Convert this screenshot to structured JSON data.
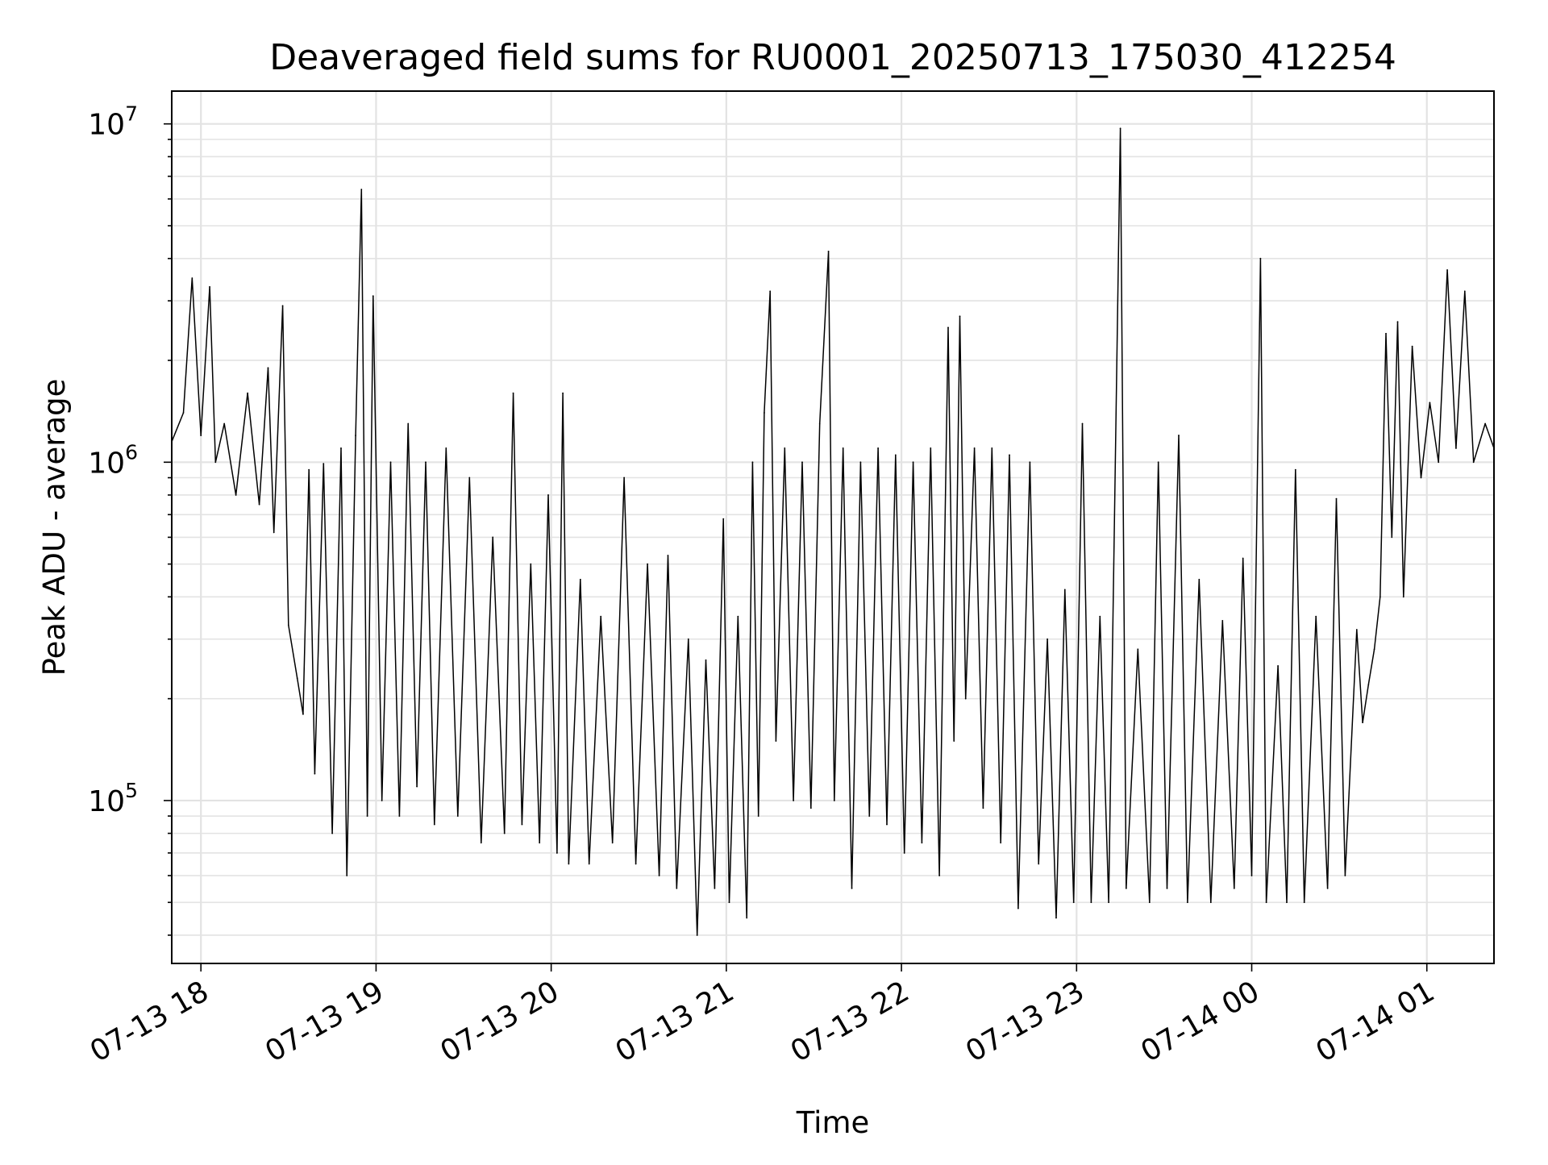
{
  "chart_data": {
    "type": "line",
    "title": "Deaveraged field sums for RU0001_20250713_175030_412254",
    "xlabel": "Time",
    "ylabel": "Peak ADU - average",
    "y_scale": "log",
    "ylim": [
      33000,
      12500000
    ],
    "xlim": [
      "07-13 17:50",
      "07-14 01:23"
    ],
    "grid": true,
    "line_color": "#000000",
    "grid_color": "#e3e3e3",
    "x_ticks": [
      "07-13 18",
      "07-13 19",
      "07-13 20",
      "07-13 21",
      "07-13 22",
      "07-13 23",
      "07-14 00",
      "07-14 01"
    ],
    "y_ticks": [
      {
        "base": "10",
        "exp": "5",
        "value": 100000
      },
      {
        "base": "10",
        "exp": "6",
        "value": 1000000
      },
      {
        "base": "10",
        "exp": "7",
        "value": 10000000
      }
    ],
    "series": [
      {
        "points": [
          [
            "07-13 17:50",
            1150000
          ],
          [
            "07-13 17:54",
            1400000
          ],
          [
            "07-13 17:57",
            3500000
          ],
          [
            "07-13 18:00",
            1200000
          ],
          [
            "07-13 18:03",
            3300000
          ],
          [
            "07-13 18:05",
            1000000
          ],
          [
            "07-13 18:08",
            1300000
          ],
          [
            "07-13 18:12",
            800000
          ],
          [
            "07-13 18:16",
            1600000
          ],
          [
            "07-13 18:20",
            750000
          ],
          [
            "07-13 18:23",
            1900000
          ],
          [
            "07-13 18:25",
            620000
          ],
          [
            "07-13 18:28",
            2900000
          ],
          [
            "07-13 18:30",
            330000
          ],
          [
            "07-13 18:33",
            230000
          ],
          [
            "07-13 18:35",
            180000
          ],
          [
            "07-13 18:37",
            950000
          ],
          [
            "07-13 18:39",
            120000
          ],
          [
            "07-13 18:42",
            990000
          ],
          [
            "07-13 18:45",
            80000
          ],
          [
            "07-13 18:48",
            1100000
          ],
          [
            "07-13 18:50",
            60000
          ],
          [
            "07-13 18:53",
            1200000
          ],
          [
            "07-13 18:55",
            6400000
          ],
          [
            "07-13 18:57",
            90000
          ],
          [
            "07-13 18:59",
            3100000
          ],
          [
            "07-13 19:02",
            100000
          ],
          [
            "07-13 19:05",
            1000000
          ],
          [
            "07-13 19:08",
            90000
          ],
          [
            "07-13 19:11",
            1300000
          ],
          [
            "07-13 19:14",
            110000
          ],
          [
            "07-13 19:17",
            1000000
          ],
          [
            "07-13 19:20",
            85000
          ],
          [
            "07-13 19:24",
            1100000
          ],
          [
            "07-13 19:28",
            90000
          ],
          [
            "07-13 19:32",
            900000
          ],
          [
            "07-13 19:36",
            75000
          ],
          [
            "07-13 19:40",
            600000
          ],
          [
            "07-13 19:44",
            80000
          ],
          [
            "07-13 19:47",
            1600000
          ],
          [
            "07-13 19:50",
            85000
          ],
          [
            "07-13 19:53",
            500000
          ],
          [
            "07-13 19:56",
            75000
          ],
          [
            "07-13 19:59",
            800000
          ],
          [
            "07-13 20:02",
            70000
          ],
          [
            "07-13 20:04",
            1600000
          ],
          [
            "07-13 20:06",
            65000
          ],
          [
            "07-13 20:10",
            450000
          ],
          [
            "07-13 20:13",
            65000
          ],
          [
            "07-13 20:17",
            350000
          ],
          [
            "07-13 20:21",
            75000
          ],
          [
            "07-13 20:25",
            900000
          ],
          [
            "07-13 20:29",
            65000
          ],
          [
            "07-13 20:33",
            500000
          ],
          [
            "07-13 20:37",
            60000
          ],
          [
            "07-13 20:40",
            530000
          ],
          [
            "07-13 20:43",
            55000
          ],
          [
            "07-13 20:47",
            300000
          ],
          [
            "07-13 20:50",
            40000
          ],
          [
            "07-13 20:53",
            260000
          ],
          [
            "07-13 20:56",
            55000
          ],
          [
            "07-13 20:59",
            680000
          ],
          [
            "07-13 21:01",
            50000
          ],
          [
            "07-13 21:04",
            350000
          ],
          [
            "07-13 21:07",
            45000
          ],
          [
            "07-13 21:09",
            1000000
          ],
          [
            "07-13 21:11",
            90000
          ],
          [
            "07-13 21:13",
            1400000
          ],
          [
            "07-13 21:15",
            3200000
          ],
          [
            "07-13 21:17",
            150000
          ],
          [
            "07-13 21:20",
            1100000
          ],
          [
            "07-13 21:23",
            100000
          ],
          [
            "07-13 21:26",
            1000000
          ],
          [
            "07-13 21:29",
            95000
          ],
          [
            "07-13 21:32",
            1300000
          ],
          [
            "07-13 21:35",
            4200000
          ],
          [
            "07-13 21:37",
            100000
          ],
          [
            "07-13 21:40",
            1100000
          ],
          [
            "07-13 21:43",
            55000
          ],
          [
            "07-13 21:46",
            1000000
          ],
          [
            "07-13 21:49",
            90000
          ],
          [
            "07-13 21:52",
            1100000
          ],
          [
            "07-13 21:55",
            85000
          ],
          [
            "07-13 21:58",
            1050000
          ],
          [
            "07-13 22:01",
            70000
          ],
          [
            "07-13 22:04",
            1000000
          ],
          [
            "07-13 22:07",
            75000
          ],
          [
            "07-13 22:10",
            1100000
          ],
          [
            "07-13 22:13",
            60000
          ],
          [
            "07-13 22:16",
            2500000
          ],
          [
            "07-13 22:18",
            150000
          ],
          [
            "07-13 22:20",
            2700000
          ],
          [
            "07-13 22:22",
            200000
          ],
          [
            "07-13 22:25",
            1100000
          ],
          [
            "07-13 22:28",
            95000
          ],
          [
            "07-13 22:31",
            1100000
          ],
          [
            "07-13 22:34",
            75000
          ],
          [
            "07-13 22:37",
            1050000
          ],
          [
            "07-13 22:40",
            48000
          ],
          [
            "07-13 22:44",
            1000000
          ],
          [
            "07-13 22:47",
            65000
          ],
          [
            "07-13 22:50",
            300000
          ],
          [
            "07-13 22:53",
            45000
          ],
          [
            "07-13 22:56",
            420000
          ],
          [
            "07-13 22:59",
            50000
          ],
          [
            "07-13 23:02",
            1300000
          ],
          [
            "07-13 23:05",
            50000
          ],
          [
            "07-13 23:08",
            350000
          ],
          [
            "07-13 23:11",
            50000
          ],
          [
            "07-13 23:15",
            9700000
          ],
          [
            "07-13 23:17",
            55000
          ],
          [
            "07-13 23:21",
            280000
          ],
          [
            "07-13 23:25",
            50000
          ],
          [
            "07-13 23:28",
            1000000
          ],
          [
            "07-13 23:31",
            55000
          ],
          [
            "07-13 23:35",
            1200000
          ],
          [
            "07-13 23:38",
            50000
          ],
          [
            "07-13 23:42",
            450000
          ],
          [
            "07-13 23:46",
            50000
          ],
          [
            "07-13 23:50",
            340000
          ],
          [
            "07-13 23:54",
            55000
          ],
          [
            "07-13 23:57",
            520000
          ],
          [
            "07-14 00:00",
            60000
          ],
          [
            "07-14 00:03",
            4000000
          ],
          [
            "07-14 00:05",
            50000
          ],
          [
            "07-14 00:09",
            250000
          ],
          [
            "07-14 00:12",
            50000
          ],
          [
            "07-14 00:15",
            950000
          ],
          [
            "07-14 00:18",
            50000
          ],
          [
            "07-14 00:22",
            350000
          ],
          [
            "07-14 00:26",
            55000
          ],
          [
            "07-14 00:29",
            780000
          ],
          [
            "07-14 00:32",
            60000
          ],
          [
            "07-14 00:36",
            320000
          ],
          [
            "07-14 00:38",
            170000
          ],
          [
            "07-14 00:40",
            220000
          ],
          [
            "07-14 00:42",
            280000
          ],
          [
            "07-14 00:44",
            400000
          ],
          [
            "07-14 00:46",
            2400000
          ],
          [
            "07-14 00:48",
            600000
          ],
          [
            "07-14 00:50",
            2600000
          ],
          [
            "07-14 00:52",
            400000
          ],
          [
            "07-14 00:55",
            2200000
          ],
          [
            "07-14 00:58",
            900000
          ],
          [
            "07-14 01:01",
            1500000
          ],
          [
            "07-14 01:04",
            1000000
          ],
          [
            "07-14 01:07",
            3700000
          ],
          [
            "07-14 01:10",
            1100000
          ],
          [
            "07-14 01:13",
            3200000
          ],
          [
            "07-14 01:16",
            1000000
          ],
          [
            "07-14 01:20",
            1300000
          ],
          [
            "07-14 01:23",
            1100000
          ]
        ]
      }
    ]
  }
}
